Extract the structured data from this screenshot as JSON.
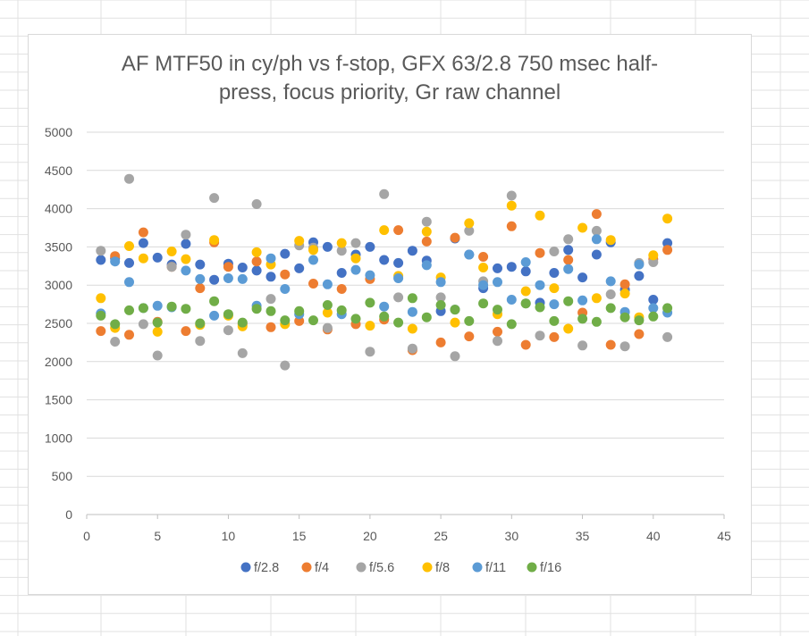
{
  "chart_data": {
    "type": "scatter",
    "title_lines": [
      "AF MTF50 in cy/ph vs f-stop, GFX 63/2.8 750 msec half-",
      "press, focus priority, Gr raw channel"
    ],
    "xlabel": "",
    "ylabel": "",
    "xlim": [
      0,
      45
    ],
    "ylim": [
      0,
      5000
    ],
    "x_ticks": [
      0,
      5,
      10,
      15,
      20,
      25,
      30,
      35,
      40,
      45
    ],
    "y_ticks": [
      0,
      500,
      1000,
      1500,
      2000,
      2500,
      3000,
      3500,
      4000,
      4500,
      5000
    ],
    "grid": "horizontal",
    "legend_position": "bottom",
    "x": [
      1,
      2,
      3,
      4,
      5,
      6,
      7,
      8,
      9,
      10,
      11,
      12,
      13,
      14,
      15,
      16,
      17,
      18,
      19,
      20,
      21,
      22,
      23,
      24,
      25,
      26,
      27,
      28,
      29,
      30,
      31,
      32,
      33,
      34,
      35,
      36,
      37,
      38,
      39,
      40,
      41
    ],
    "series": [
      {
        "name": "f/2.8",
        "color": "#4472c4",
        "values": [
          3330,
          3350,
          3290,
          3550,
          3360,
          3270,
          3540,
          3270,
          3070,
          3280,
          3230,
          3190,
          3110,
          3410,
          3220,
          3560,
          3500,
          3160,
          3400,
          3500,
          3330,
          3290,
          3450,
          3320,
          2660,
          3610,
          3400,
          2960,
          3220,
          3240,
          3180,
          2770,
          3160,
          3460,
          3100,
          3400,
          3560,
          2940,
          3120,
          2810,
          3550
        ]
      },
      {
        "name": "f/4",
        "color": "#ed7d31",
        "values": [
          2400,
          3380,
          2350,
          3690,
          2520,
          3240,
          2400,
          2960,
          3560,
          3240,
          2490,
          3310,
          2450,
          3140,
          2530,
          3020,
          2420,
          2950,
          2490,
          3080,
          2550,
          3720,
          2150,
          3570,
          2250,
          3620,
          2330,
          3370,
          2390,
          3770,
          2220,
          3420,
          2320,
          3330,
          2640,
          3930,
          2220,
          3010,
          2360,
          3340,
          3460
        ]
      },
      {
        "name": "f/5.6",
        "color": "#a5a5a5",
        "values": [
          3450,
          2260,
          4390,
          2490,
          2080,
          3240,
          3660,
          2270,
          4140,
          2410,
          2110,
          4060,
          2820,
          1950,
          3520,
          3490,
          2440,
          3450,
          3550,
          2130,
          4190,
          2840,
          2170,
          3830,
          2840,
          2070,
          3710,
          3050,
          2270,
          4170,
          2760,
          2340,
          3440,
          3600,
          2210,
          3710,
          2880,
          2200,
          3290,
          3300,
          2320
        ]
      },
      {
        "name": "f/8",
        "color": "#ffc000",
        "values": [
          2830,
          2440,
          3510,
          3350,
          2390,
          3440,
          3340,
          2480,
          3590,
          2600,
          2460,
          3430,
          3270,
          2490,
          3580,
          3460,
          2640,
          3550,
          3350,
          2470,
          3720,
          3120,
          2430,
          3700,
          3100,
          2510,
          3810,
          3230,
          2620,
          4040,
          2920,
          3910,
          2960,
          2430,
          3750,
          2830,
          3590,
          2890,
          2580,
          3390,
          3870
        ]
      },
      {
        "name": "f/11",
        "color": "#5b9bd5",
        "values": [
          2630,
          3310,
          3040,
          2700,
          2730,
          2710,
          3190,
          3080,
          2600,
          3090,
          3080,
          2730,
          3350,
          2950,
          2620,
          3330,
          3010,
          2620,
          3200,
          3130,
          2720,
          3090,
          2650,
          3260,
          3040,
          2680,
          3400,
          3000,
          3040,
          2810,
          3300,
          3000,
          2750,
          3210,
          2800,
          3600,
          3050,
          2650,
          3270,
          2700,
          2640
        ]
      },
      {
        "name": "f/16",
        "color": "#70ad47",
        "values": [
          2600,
          2490,
          2670,
          2700,
          2510,
          2720,
          2690,
          2500,
          2790,
          2620,
          2510,
          2690,
          2660,
          2540,
          2660,
          2540,
          2740,
          2670,
          2560,
          2770,
          2590,
          2510,
          2830,
          2580,
          2740,
          2680,
          2530,
          2760,
          2680,
          2490,
          2760,
          2710,
          2530,
          2790,
          2560,
          2520,
          2700,
          2580,
          2540,
          2590,
          2700
        ]
      }
    ]
  }
}
